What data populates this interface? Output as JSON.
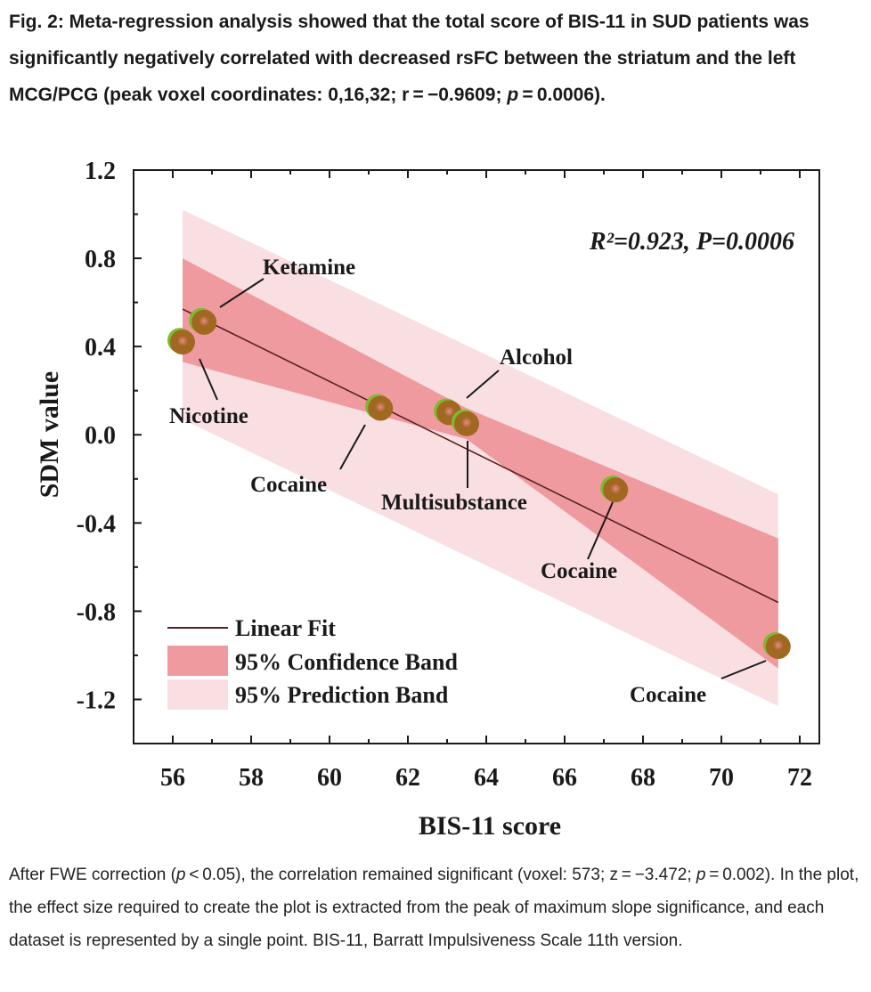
{
  "caption": {
    "title_main": "Fig. 2: Meta-regression analysis showed that the total score of BIS-11 in SUD patients was significantly negatively correlated with decreased rsFC between the striatum and the left MCG/PCG (peak voxel coordinates: 0,16,32; r = −0.9609; ",
    "title_p": "p",
    "title_end": " = 0.0006).",
    "body_start": "After FWE correction (",
    "body_p1": "p",
    "body_mid": " < 0.05), the correlation remained significant (voxel: 573; z = −3.472; ",
    "body_p2": "p",
    "body_end": " = 0.002). In the plot, the effect size required to create the plot is extracted from the peak of maximum slope significance, and each dataset is represented by a single point. BIS-11, Barratt Impulsiveness Scale 11th version."
  },
  "colors": {
    "confidence_band": "#ef9a9e",
    "prediction_band": "#f9dfe2",
    "fit_line": "#5a1f1f",
    "point_green": "#7cba2f",
    "point_brown": "#a06820",
    "point_highlight": "#e98a8a"
  },
  "chart_data": {
    "type": "scatter",
    "title": "",
    "xlabel": "BIS-11 score",
    "ylabel": "SDM value",
    "xlim": [
      55,
      72.5
    ],
    "ylim": [
      -1.4,
      1.2
    ],
    "x_ticks": [
      56,
      58,
      60,
      62,
      64,
      66,
      68,
      70,
      72
    ],
    "x_tick_labels": [
      "56",
      "58",
      "60",
      "62",
      "64",
      "66",
      "68",
      "70",
      "72"
    ],
    "y_ticks": [
      1.2,
      0.8,
      0.4,
      0.0,
      -0.4,
      -0.8,
      -1.2
    ],
    "y_tick_labels": [
      "1.2",
      "0.8",
      "0.4",
      "0.0",
      "-0.4",
      "-0.8",
      "-1.2"
    ],
    "annotation": "R²=0.923, P=0.0006",
    "points": [
      {
        "label": "Nicotine",
        "x": 56.25,
        "y": 0.42
      },
      {
        "label": "Ketamine",
        "x": 56.8,
        "y": 0.51
      },
      {
        "label": "Cocaine",
        "x": 61.3,
        "y": 0.12
      },
      {
        "label": "Alcohol",
        "x": 63.05,
        "y": 0.1
      },
      {
        "label": "Multisubstance",
        "x": 63.5,
        "y": 0.05
      },
      {
        "label": "Cocaine",
        "x": 67.3,
        "y": -0.25
      },
      {
        "label": "Cocaine",
        "x": 71.45,
        "y": -0.96
      }
    ],
    "linear_fit": {
      "x": [
        56.25,
        71.45
      ],
      "y": [
        0.57,
        -0.76
      ]
    },
    "confidence_band": {
      "x": [
        56.25,
        63.5,
        71.45
      ],
      "upper": [
        0.8,
        0.12,
        -0.47
      ],
      "lower": [
        0.33,
        -0.02,
        -1.06
      ]
    },
    "prediction_band": {
      "x": [
        56.25,
        71.45
      ],
      "upper": [
        1.02,
        -0.27
      ],
      "lower": [
        0.07,
        -1.23
      ]
    },
    "legend": {
      "placement": "bottom-left",
      "entries": [
        "Linear Fit",
        "95% Confidence Band",
        "95% Prediction Band"
      ]
    }
  }
}
